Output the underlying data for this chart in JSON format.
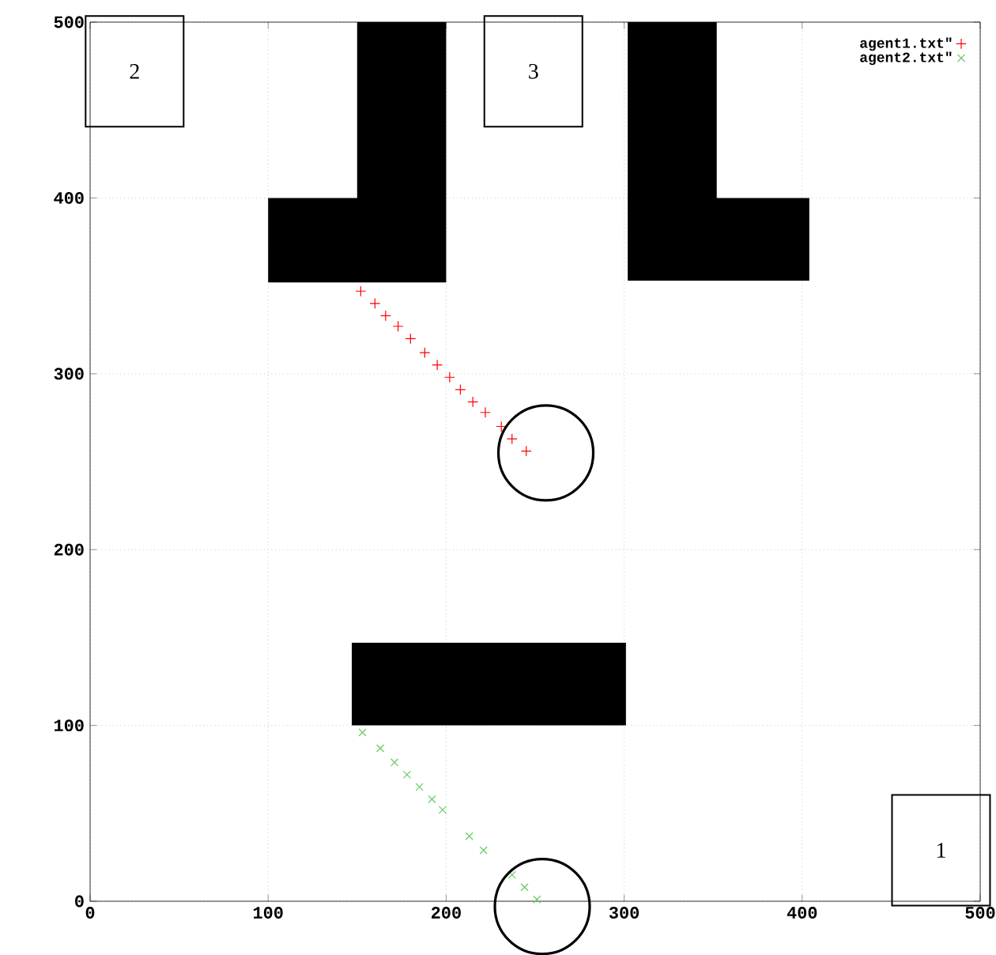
{
  "chart_data": {
    "type": "scatter",
    "xlim": [
      0,
      500
    ],
    "ylim": [
      0,
      500
    ],
    "xticks": [
      0,
      100,
      200,
      300,
      400,
      500
    ],
    "yticks": [
      0,
      100,
      200,
      300,
      400,
      500
    ],
    "grid": true,
    "legend": "top right",
    "annotations": [
      "2",
      "3",
      "1"
    ],
    "series": [
      {
        "name": "agent1.txt\"",
        "color": "#ff0000",
        "marker": "plus",
        "x": [
          152,
          160,
          166,
          173,
          180,
          188,
          195,
          202,
          208,
          215,
          222,
          231,
          237,
          245
        ],
        "values": [
          347,
          340,
          333,
          327,
          320,
          312,
          305,
          298,
          291,
          284,
          278,
          270,
          263,
          256
        ]
      },
      {
        "name": "agent2.txt\"",
        "color": "#66cc66",
        "marker": "cross",
        "x": [
          153,
          163,
          171,
          178,
          185,
          192,
          198,
          213,
          221,
          237,
          244,
          251
        ],
        "values": [
          96,
          87,
          79,
          72,
          65,
          58,
          52,
          37,
          29,
          15,
          8,
          1
        ]
      }
    ]
  }
}
